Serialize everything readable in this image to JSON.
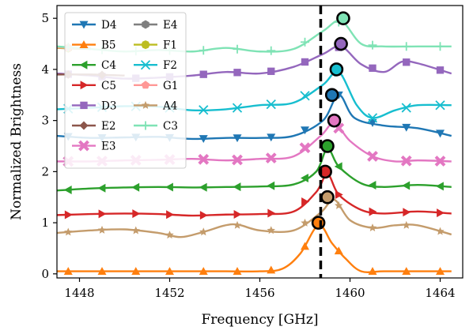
{
  "chart_data": {
    "type": "line",
    "xlabel": "Frequency [GHz]",
    "ylabel": "Normalized Brightness",
    "xlim": [
      1447.0,
      1465.0
    ],
    "ylim": [
      -0.08,
      5.25
    ],
    "xticks": [
      1448,
      1452,
      1456,
      1460,
      1464
    ],
    "xtick_labels": [
      "1448",
      "1452",
      "1456",
      "1460",
      "1464"
    ],
    "yticks": [
      0,
      1,
      2,
      3,
      4,
      5
    ],
    "ytick_labels": [
      "0",
      "1",
      "2",
      "3",
      "4",
      "5"
    ],
    "grid": false,
    "legend": {
      "placement": "top-left",
      "columns": 2
    },
    "vline": {
      "x": 1458.7,
      "style": "dashed",
      "color": "#000000"
    },
    "series": [
      {
        "name": "D4",
        "color": "#1f77b4",
        "marker": "triangle-down",
        "offset": 2.7,
        "x": [
          1447.0,
          1448.5,
          1450.0,
          1451.5,
          1453.0,
          1454.5,
          1456.0,
          1457.5,
          1458.8,
          1459.5,
          1460.2,
          1461.5,
          1463.0,
          1464.5
        ],
        "y": [
          2.7,
          2.66,
          2.67,
          2.68,
          2.64,
          2.66,
          2.66,
          2.7,
          3.0,
          3.5,
          3.05,
          2.9,
          2.85,
          2.7
        ],
        "highlight": {
          "x": 1459.2,
          "y": 3.5
        }
      },
      {
        "name": "B5",
        "color": "#ff7f0e",
        "marker": "triangle-up",
        "offset": 0.0,
        "x": [
          1447.0,
          1448.5,
          1450.0,
          1451.5,
          1453.0,
          1454.5,
          1456.0,
          1457.0,
          1457.8,
          1458.6,
          1459.2,
          1459.8,
          1460.5,
          1461.5,
          1463.0,
          1464.5
        ],
        "y": [
          0.05,
          0.05,
          0.05,
          0.05,
          0.05,
          0.05,
          0.05,
          0.1,
          0.4,
          0.95,
          0.6,
          0.3,
          0.05,
          0.05,
          0.05,
          0.05
        ],
        "highlight": {
          "x": 1458.6,
          "y": 1.0
        }
      },
      {
        "name": "C4",
        "color": "#2ca02c",
        "marker": "triangle-left",
        "offset": 1.6,
        "x": [
          1447.0,
          1448.5,
          1450.0,
          1451.5,
          1453.0,
          1454.5,
          1456.0,
          1457.5,
          1458.5,
          1459.0,
          1459.5,
          1460.5,
          1461.5,
          1463.0,
          1464.5
        ],
        "y": [
          1.63,
          1.67,
          1.69,
          1.7,
          1.69,
          1.7,
          1.71,
          1.75,
          2.0,
          2.45,
          2.1,
          1.77,
          1.7,
          1.74,
          1.7
        ],
        "highlight": {
          "x": 1459.0,
          "y": 2.5
        }
      },
      {
        "name": "C5",
        "color": "#d62728",
        "marker": "triangle-right",
        "offset": 1.1,
        "x": [
          1447.0,
          1448.5,
          1450.0,
          1451.5,
          1453.0,
          1454.5,
          1456.0,
          1457.5,
          1458.5,
          1459.0,
          1459.5,
          1460.5,
          1461.5,
          1463.0,
          1464.5
        ],
        "y": [
          1.15,
          1.17,
          1.18,
          1.17,
          1.14,
          1.16,
          1.17,
          1.22,
          1.6,
          1.95,
          1.55,
          1.25,
          1.18,
          1.22,
          1.18
        ],
        "highlight": {
          "x": 1458.9,
          "y": 2.0
        }
      },
      {
        "name": "D3",
        "color": "#9467bd",
        "marker": "square",
        "offset": 3.9,
        "x": [
          1447.0,
          1448.5,
          1450.0,
          1451.5,
          1453.0,
          1454.5,
          1456.0,
          1457.5,
          1458.8,
          1459.6,
          1460.5,
          1461.5,
          1462.3,
          1463.0,
          1464.5
        ],
        "y": [
          3.92,
          3.88,
          3.82,
          3.84,
          3.88,
          3.95,
          3.92,
          4.05,
          4.3,
          4.45,
          4.1,
          3.95,
          4.15,
          4.12,
          3.92
        ],
        "highlight": {
          "x": 1459.6,
          "y": 4.5
        }
      },
      {
        "name": "E2",
        "color": "#8c564b",
        "marker": "diamond",
        "offset": 3.9,
        "x": [
          1447.0,
          1448.5,
          1450.0
        ],
        "y": [
          3.9,
          3.9,
          3.88
        ],
        "highlight": null
      },
      {
        "name": "E3",
        "color": "#e377c2",
        "marker": "x-thick",
        "offset": 2.2,
        "x": [
          1447.0,
          1448.5,
          1450.0,
          1451.5,
          1453.0,
          1454.5,
          1456.0,
          1457.5,
          1458.7,
          1459.3,
          1460.0,
          1461.0,
          1462.0,
          1463.0,
          1464.5
        ],
        "y": [
          2.2,
          2.2,
          2.22,
          2.23,
          2.25,
          2.22,
          2.25,
          2.3,
          2.7,
          2.95,
          2.6,
          2.3,
          2.2,
          2.22,
          2.2
        ],
        "highlight": {
          "x": 1459.3,
          "y": 3.0
        }
      },
      {
        "name": "E4",
        "color": "#7f7f7f",
        "marker": "hexagon",
        "offset": 4.4,
        "x": [
          1447.0,
          1448.5
        ],
        "y": [
          4.42,
          4.4
        ],
        "highlight": null
      },
      {
        "name": "F1",
        "color": "#bcbd22",
        "marker": "octagon",
        "offset": 4.4,
        "x": [
          1447.0,
          1448.5
        ],
        "y": [
          4.42,
          4.41
        ],
        "highlight": null
      },
      {
        "name": "F2",
        "color": "#17becf",
        "marker": "x",
        "offset": 3.2,
        "x": [
          1447.0,
          1448.5,
          1450.0,
          1451.5,
          1453.0,
          1454.5,
          1456.0,
          1457.5,
          1458.8,
          1459.5,
          1460.3,
          1461.0,
          1462.0,
          1463.0,
          1464.5
        ],
        "y": [
          3.22,
          3.25,
          3.28,
          3.27,
          3.2,
          3.22,
          3.3,
          3.35,
          3.7,
          3.95,
          3.3,
          3.05,
          3.2,
          3.3,
          3.3
        ],
        "highlight": {
          "x": 1459.4,
          "y": 4.0
        }
      },
      {
        "name": "G1",
        "color": "#ff9896",
        "marker": "pentagon",
        "offset": 4.4,
        "x": [
          1447.0,
          1448.5
        ],
        "y": [
          4.43,
          4.41
        ],
        "highlight": null
      },
      {
        "name": "A4",
        "color": "#c49c6c",
        "marker": "star",
        "offset": 0.85,
        "x": [
          1447.0,
          1448.5,
          1450.0,
          1451.5,
          1452.5,
          1453.5,
          1454.8,
          1456.0,
          1457.5,
          1458.7,
          1459.3,
          1460.0,
          1461.0,
          1462.0,
          1463.0,
          1464.5
        ],
        "y": [
          0.8,
          0.85,
          0.87,
          0.8,
          0.72,
          0.82,
          0.97,
          0.85,
          0.85,
          1.2,
          1.45,
          1.05,
          0.9,
          0.95,
          0.95,
          0.77
        ],
        "highlight": {
          "x": 1459.0,
          "y": 1.5
        }
      },
      {
        "name": "C3",
        "color": "#7fe3b5",
        "marker": "plus",
        "offset": 4.45,
        "x": [
          1447.0,
          1448.5,
          1450.0,
          1451.5,
          1453.0,
          1454.5,
          1456.0,
          1457.5,
          1458.8,
          1459.6,
          1460.5,
          1461.5,
          1463.0,
          1464.5
        ],
        "y": [
          4.45,
          4.4,
          4.35,
          4.38,
          4.35,
          4.42,
          4.35,
          4.4,
          4.75,
          4.95,
          4.5,
          4.45,
          4.45,
          4.45
        ],
        "highlight": {
          "x": 1459.7,
          "y": 5.0
        }
      }
    ]
  }
}
